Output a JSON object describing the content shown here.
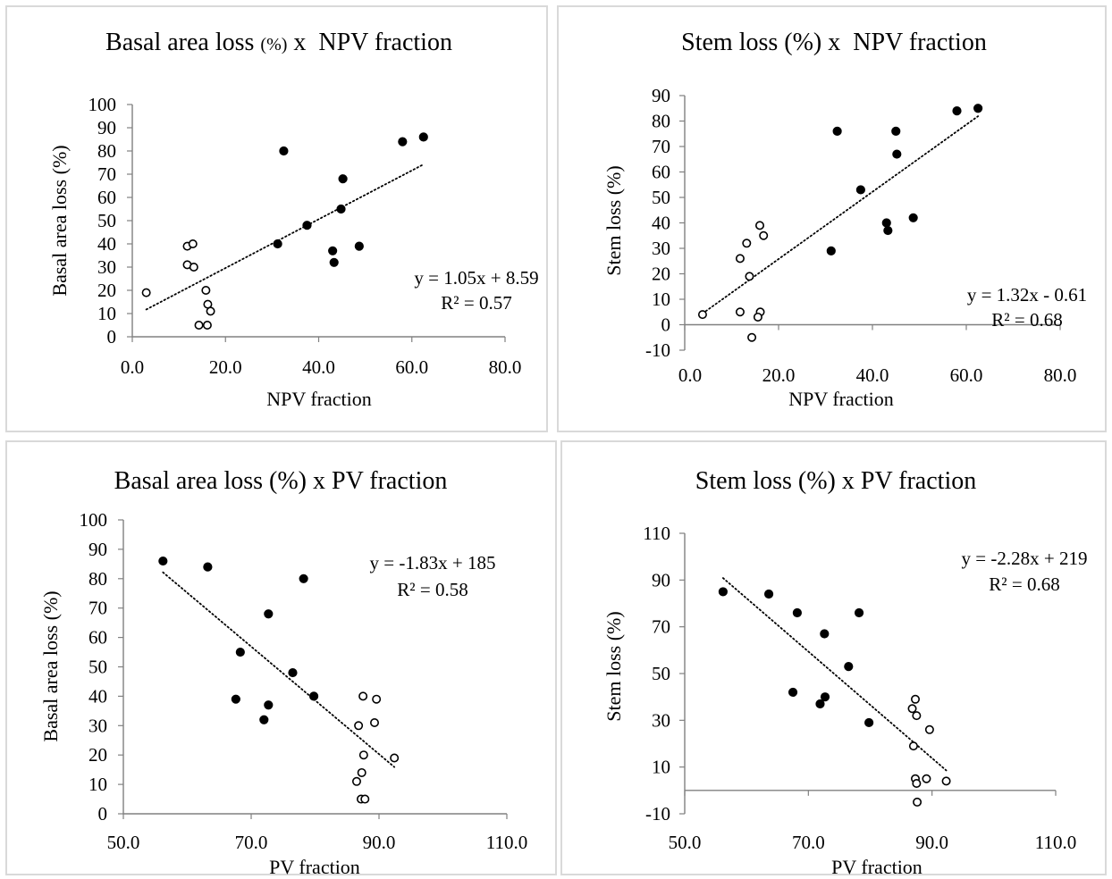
{
  "colors": {
    "panel_border": "#d9d9d9",
    "filled": "#000000",
    "hollow": "#ffffff",
    "axis": "#808080"
  },
  "chart_data": [
    {
      "type": "scatter",
      "title_parts": [
        {
          "text": "Basal area loss ",
          "size": "large"
        },
        {
          "text": "(%)",
          "size": "small"
        },
        {
          "text": " x  NPV fraction",
          "size": "large"
        }
      ],
      "xlabel": "NPV fraction",
      "ylabel": "Basal area loss (%)",
      "xlim": [
        0,
        80
      ],
      "ylim": [
        0,
        100
      ],
      "xticks": [
        "0.0",
        "20.0",
        "40.0",
        "60.0",
        "80.0"
      ],
      "yticks": [
        "0",
        "10",
        "20",
        "30",
        "40",
        "50",
        "60",
        "70",
        "80",
        "90",
        "100"
      ],
      "grid": false,
      "series": [
        {
          "marker": "filled",
          "points": [
            [
              32.5,
              80
            ],
            [
              58,
              84
            ],
            [
              62.5,
              86
            ],
            [
              45.2,
              68
            ],
            [
              44.8,
              55
            ],
            [
              37.5,
              48
            ],
            [
              31.2,
              40
            ],
            [
              43,
              37
            ],
            [
              48.7,
              39
            ],
            [
              43.3,
              32
            ]
          ]
        },
        {
          "marker": "hollow",
          "points": [
            [
              3,
              19
            ],
            [
              11.8,
              39
            ],
            [
              13,
              40
            ],
            [
              11.8,
              31
            ],
            [
              13.2,
              30
            ],
            [
              15.8,
              20
            ],
            [
              16.2,
              14
            ],
            [
              16.8,
              11
            ],
            [
              14.3,
              5
            ],
            [
              16.1,
              5
            ]
          ]
        }
      ],
      "trendline": {
        "from": [
          3,
          11.74
        ],
        "to": [
          62.5,
          74.22
        ],
        "style": "dotted"
      },
      "equation": [
        "y = 1.05x + 8.59",
        "R² = 0.57"
      ]
    },
    {
      "type": "scatter",
      "title_parts": [
        {
          "text": "Stem loss (%) x  NPV fraction",
          "size": "large"
        }
      ],
      "xlabel": "NPV fraction",
      "ylabel": "Stem loss (%)",
      "xlim": [
        0,
        80
      ],
      "ylim": [
        -10,
        90
      ],
      "xticks": [
        "0.0",
        "20.0",
        "40.0",
        "60.0",
        "80.0"
      ],
      "yticks": [
        "-10",
        "0",
        "10",
        "20",
        "30",
        "40",
        "50",
        "60",
        "70",
        "80",
        "90"
      ],
      "grid": false,
      "series": [
        {
          "marker": "filled",
          "points": [
            [
              32.5,
              76
            ],
            [
              45,
              76
            ],
            [
              45.2,
              67
            ],
            [
              37.5,
              53
            ],
            [
              43,
              40
            ],
            [
              43.3,
              37
            ],
            [
              48.7,
              42
            ],
            [
              31.2,
              29
            ],
            [
              58,
              84
            ],
            [
              62.5,
              85
            ]
          ]
        },
        {
          "marker": "hollow",
          "points": [
            [
              3.8,
              4
            ],
            [
              16,
              39
            ],
            [
              16.8,
              35
            ],
            [
              11.8,
              26
            ],
            [
              13.2,
              32
            ],
            [
              13.8,
              19
            ],
            [
              11.8,
              5
            ],
            [
              16.1,
              5
            ],
            [
              15.6,
              3
            ],
            [
              14.3,
              -5
            ]
          ]
        }
      ],
      "trendline": {
        "from": [
          3.8,
          4.41
        ],
        "to": [
          62.5,
          81.89
        ],
        "style": "dotted"
      },
      "equation": [
        "y = 1.32x - 0.61",
        "R² = 0.68"
      ]
    },
    {
      "type": "scatter",
      "title_parts": [
        {
          "text": "Basal area loss (%) x PV fraction",
          "size": "large"
        }
      ],
      "xlabel": "PV fraction",
      "ylabel": "Basal area loss (%)",
      "xlim": [
        50,
        110
      ],
      "ylim": [
        0,
        100
      ],
      "xticks": [
        "50.0",
        "70.0",
        "90.0",
        "110.0"
      ],
      "yticks": [
        "0",
        "10",
        "20",
        "30",
        "40",
        "50",
        "60",
        "70",
        "80",
        "90",
        "100"
      ],
      "grid": false,
      "series": [
        {
          "marker": "filled",
          "points": [
            [
              56.2,
              86
            ],
            [
              63.2,
              84
            ],
            [
              78.2,
              80
            ],
            [
              72.7,
              68
            ],
            [
              68.3,
              55
            ],
            [
              76.5,
              48
            ],
            [
              79.8,
              40
            ],
            [
              67.6,
              39
            ],
            [
              72.7,
              37
            ],
            [
              72,
              32
            ]
          ]
        },
        {
          "marker": "hollow",
          "points": [
            [
              87.5,
              40
            ],
            [
              89.6,
              39
            ],
            [
              86.8,
              30
            ],
            [
              89.3,
              31
            ],
            [
              87.6,
              20
            ],
            [
              92.4,
              19
            ],
            [
              87.3,
              14
            ],
            [
              86.5,
              11
            ],
            [
              87.2,
              5
            ],
            [
              87.8,
              5
            ]
          ]
        }
      ],
      "trendline": {
        "from": [
          56.2,
          82.15
        ],
        "to": [
          92.4,
          15.91
        ],
        "style": "dotted"
      },
      "equation": [
        "y = -1.83x + 185",
        "R² = 0.58"
      ]
    },
    {
      "type": "scatter",
      "title_parts": [
        {
          "text": "Stem loss (%) x PV fraction",
          "size": "large"
        }
      ],
      "xlabel": "PV fraction",
      "ylabel": "Stem loss (%)",
      "xlim": [
        50,
        110
      ],
      "ylim": [
        -10,
        110
      ],
      "xticks": [
        "50.0",
        "70.0",
        "90.0",
        "110.0"
      ],
      "yticks": [
        "-10",
        "10",
        "30",
        "50",
        "70",
        "90",
        "110"
      ],
      "ytick_values": [
        -10,
        10,
        30,
        50,
        70,
        90,
        110
      ],
      "grid": false,
      "series": [
        {
          "marker": "filled",
          "points": [
            [
              56.2,
              85
            ],
            [
              63.6,
              84
            ],
            [
              68.2,
              76
            ],
            [
              78.2,
              76
            ],
            [
              72.6,
              67
            ],
            [
              76.5,
              53
            ],
            [
              67.5,
              42
            ],
            [
              72.7,
              40
            ],
            [
              71.9,
              37
            ],
            [
              79.8,
              29
            ]
          ]
        },
        {
          "marker": "hollow",
          "points": [
            [
              87.3,
              39
            ],
            [
              86.8,
              35
            ],
            [
              87.5,
              32
            ],
            [
              89.6,
              26
            ],
            [
              87,
              19
            ],
            [
              87.3,
              5
            ],
            [
              89.1,
              5
            ],
            [
              92.3,
              4
            ],
            [
              87.5,
              3
            ],
            [
              87.6,
              -5
            ]
          ]
        }
      ],
      "trendline": {
        "from": [
          56.2,
          90.86
        ],
        "to": [
          92.3,
          8.56
        ],
        "style": "dotted"
      },
      "equation": [
        "y = -2.28x + 219",
        "R² = 0.68"
      ]
    }
  ]
}
